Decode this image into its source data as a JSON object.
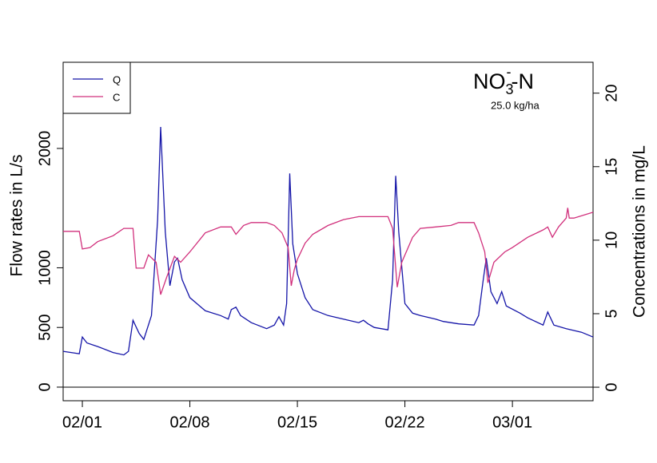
{
  "chart_data": {
    "type": "line",
    "ylabel": "Flow rates in L/s",
    "y2label": "Concentrations in mg/L",
    "annotation": {
      "main": "NO",
      "sub": "3",
      "sup": "-",
      "suffix": "-N",
      "note": "25.0 kg/ha"
    },
    "legend": "top-left",
    "xlim": [
      -1.25,
      33.25
    ],
    "xticks": [
      {
        "value": 0,
        "label": "02/01"
      },
      {
        "value": 7,
        "label": "02/08"
      },
      {
        "value": 14,
        "label": "02/15"
      },
      {
        "value": 21,
        "label": "02/22"
      },
      {
        "value": 28,
        "label": "03/01"
      }
    ],
    "ylim": [
      -114,
      2722
    ],
    "yticks": [
      0,
      500,
      1000,
      2000
    ],
    "y2lim": [
      -0.92,
      22.1
    ],
    "y2ticks": [
      0,
      5,
      10,
      15,
      20
    ],
    "series": [
      {
        "name": "Q",
        "color": "#1515a8",
        "axis": "y",
        "x": [
          -1.25,
          -0.2,
          0,
          0.3,
          1,
          2,
          2.7,
          3,
          3.3,
          3.7,
          4,
          4.5,
          4.9,
          5.1,
          5.4,
          5.7,
          6,
          6.2,
          6.5,
          7,
          8,
          9,
          9.5,
          9.7,
          10,
          10.3,
          11,
          12,
          12.5,
          12.8,
          13.1,
          13.3,
          13.5,
          13.7,
          14,
          14.5,
          15,
          16,
          17,
          18,
          18.3,
          18.6,
          19,
          19.9,
          20.2,
          20.4,
          20.6,
          21,
          21.5,
          22,
          23,
          23.5,
          24,
          24.5,
          25.5,
          25.8,
          26.1,
          26.3,
          26.6,
          27,
          27.3,
          27.6,
          28.5,
          29,
          30,
          30.3,
          30.7,
          31.5,
          32.5,
          33.25
        ],
        "values": [
          300,
          280,
          420,
          370,
          340,
          290,
          270,
          300,
          560,
          450,
          400,
          600,
          1400,
          2180,
          1300,
          850,
          1050,
          1080,
          900,
          750,
          640,
          600,
          570,
          650,
          670,
          600,
          540,
          490,
          520,
          590,
          520,
          700,
          1790,
          1200,
          950,
          750,
          650,
          600,
          570,
          540,
          560,
          530,
          500,
          480,
          900,
          1770,
          1300,
          700,
          620,
          600,
          570,
          550,
          540,
          530,
          520,
          600,
          900,
          1080,
          800,
          700,
          800,
          680,
          620,
          580,
          520,
          630,
          520,
          490,
          460,
          420
        ]
      },
      {
        "name": "C",
        "color": "#d1307c",
        "axis": "y2",
        "x": [
          -1.25,
          -0.2,
          0,
          0.5,
          1,
          2,
          2.7,
          3.3,
          3.5,
          4,
          4.3,
          4.8,
          5.1,
          5.5,
          6,
          6.4,
          7,
          8,
          9,
          9.7,
          10,
          10.5,
          11,
          12,
          12.5,
          13,
          13.4,
          13.6,
          13.8,
          14,
          14.5,
          15,
          16,
          17,
          18,
          19.9,
          20.2,
          20.5,
          20.8,
          21.5,
          22,
          23,
          24,
          24.5,
          25.5,
          25.8,
          26.2,
          26.4,
          26.8,
          27.5,
          28,
          29,
          30,
          30.3,
          30.6,
          31,
          31.5,
          31.6,
          31.7,
          32,
          33.25
        ],
        "values": [
          10.6,
          10.6,
          9.4,
          9.5,
          9.9,
          10.3,
          10.8,
          10.8,
          8.1,
          8.1,
          9.0,
          8.5,
          6.3,
          7.5,
          8.9,
          8.5,
          9.2,
          10.5,
          10.9,
          10.9,
          10.4,
          11.0,
          11.2,
          11.2,
          11.0,
          10.5,
          9.5,
          6.9,
          8.0,
          8.7,
          9.8,
          10.4,
          11.0,
          11.4,
          11.6,
          11.6,
          10.8,
          6.8,
          8.5,
          10.2,
          10.8,
          10.9,
          11.0,
          11.2,
          11.2,
          10.5,
          9.2,
          7.1,
          8.5,
          9.2,
          9.5,
          10.2,
          10.7,
          10.9,
          10.2,
          10.9,
          11.5,
          12.2,
          11.5,
          11.5,
          11.9
        ]
      }
    ]
  }
}
